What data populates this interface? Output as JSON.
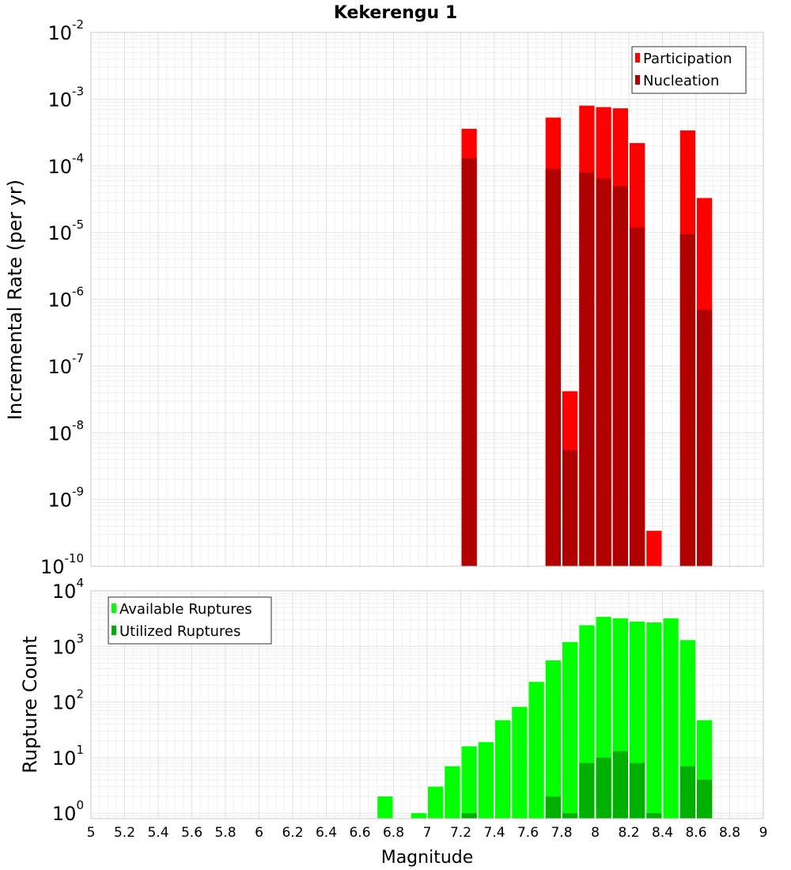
{
  "chart_data": [
    {
      "type": "bar",
      "title": "Kekerengu 1",
      "xlabel": "Magnitude",
      "ylabel": "Incremental Rate (per yr)",
      "yscale": "log",
      "ylim": [
        1e-10,
        0.01
      ],
      "xlim": [
        5,
        9
      ],
      "bin_width": 0.1,
      "legend_position": "top-right",
      "grid": true,
      "series": [
        {
          "name": "Participation",
          "color": "#ff0000",
          "points": [
            {
              "x": 7.25,
              "y": 0.00036
            },
            {
              "x": 7.75,
              "y": 0.00053
            },
            {
              "x": 7.85,
              "y": 4.2e-08
            },
            {
              "x": 7.95,
              "y": 0.0008
            },
            {
              "x": 8.05,
              "y": 0.00076
            },
            {
              "x": 8.15,
              "y": 0.00073
            },
            {
              "x": 8.25,
              "y": 0.00022
            },
            {
              "x": 8.35,
              "y": 3.4e-10
            },
            {
              "x": 8.55,
              "y": 0.00034
            },
            {
              "x": 8.65,
              "y": 3.3e-05
            }
          ]
        },
        {
          "name": "Nucleation",
          "color": "#b00000",
          "points": [
            {
              "x": 7.25,
              "y": 0.00013
            },
            {
              "x": 7.75,
              "y": 9e-05
            },
            {
              "x": 7.85,
              "y": 5.5e-09
            },
            {
              "x": 7.95,
              "y": 8e-05
            },
            {
              "x": 8.05,
              "y": 6.5e-05
            },
            {
              "x": 8.15,
              "y": 5e-05
            },
            {
              "x": 8.25,
              "y": 1.2e-05
            },
            {
              "x": 8.55,
              "y": 9.5e-06
            },
            {
              "x": 8.65,
              "y": 7e-07
            }
          ]
        }
      ],
      "y_ticks": [
        {
          "base": "10",
          "exp": "-2",
          "value": 0.01
        },
        {
          "base": "10",
          "exp": "-3",
          "value": 0.001
        },
        {
          "base": "10",
          "exp": "-4",
          "value": 0.0001
        },
        {
          "base": "10",
          "exp": "-5",
          "value": 1e-05
        },
        {
          "base": "10",
          "exp": "-6",
          "value": 1e-06
        },
        {
          "base": "10",
          "exp": "-7",
          "value": 1e-07
        },
        {
          "base": "10",
          "exp": "-8",
          "value": 1e-08
        },
        {
          "base": "10",
          "exp": "-9",
          "value": 1e-09
        },
        {
          "base": "10",
          "exp": "-10",
          "value": 1e-10
        }
      ]
    },
    {
      "type": "bar",
      "xlabel": "Magnitude",
      "ylabel": "Rupture Count",
      "yscale": "log",
      "ylim": [
        0.8,
        10000
      ],
      "xlim": [
        5,
        9
      ],
      "bin_width": 0.1,
      "legend_position": "top-left",
      "grid": true,
      "series": [
        {
          "name": "Available Ruptures",
          "color": "#00ff00",
          "points": [
            {
              "x": 6.75,
              "y": 2
            },
            {
              "x": 6.95,
              "y": 1
            },
            {
              "x": 7.05,
              "y": 3
            },
            {
              "x": 7.15,
              "y": 7
            },
            {
              "x": 7.25,
              "y": 16
            },
            {
              "x": 7.35,
              "y": 19
            },
            {
              "x": 7.45,
              "y": 47
            },
            {
              "x": 7.55,
              "y": 82
            },
            {
              "x": 7.65,
              "y": 230
            },
            {
              "x": 7.75,
              "y": 560
            },
            {
              "x": 7.85,
              "y": 1200
            },
            {
              "x": 7.95,
              "y": 2400
            },
            {
              "x": 8.05,
              "y": 3400
            },
            {
              "x": 8.15,
              "y": 3200
            },
            {
              "x": 8.25,
              "y": 2800
            },
            {
              "x": 8.35,
              "y": 2700
            },
            {
              "x": 8.45,
              "y": 3200
            },
            {
              "x": 8.55,
              "y": 1300
            },
            {
              "x": 8.65,
              "y": 47
            }
          ]
        },
        {
          "name": "Utilized Ruptures",
          "color": "#00b000",
          "points": [
            {
              "x": 7.25,
              "y": 1
            },
            {
              "x": 7.75,
              "y": 2
            },
            {
              "x": 7.85,
              "y": 1
            },
            {
              "x": 7.95,
              "y": 8
            },
            {
              "x": 8.05,
              "y": 10
            },
            {
              "x": 8.15,
              "y": 13
            },
            {
              "x": 8.25,
              "y": 8
            },
            {
              "x": 8.35,
              "y": 1
            },
            {
              "x": 8.55,
              "y": 7
            },
            {
              "x": 8.65,
              "y": 4
            }
          ]
        }
      ],
      "y_ticks": [
        {
          "base": "10",
          "exp": "4",
          "value": 10000
        },
        {
          "base": "10",
          "exp": "3",
          "value": 1000
        },
        {
          "base": "10",
          "exp": "2",
          "value": 100
        },
        {
          "base": "10",
          "exp": "1",
          "value": 10
        },
        {
          "base": "10",
          "exp": "0",
          "value": 1
        }
      ],
      "x_ticks": [
        "5",
        "5.2",
        "5.4",
        "5.6",
        "5.8",
        "6",
        "6.2",
        "6.4",
        "6.6",
        "6.8",
        "7",
        "7.2",
        "7.4",
        "7.6",
        "7.8",
        "8",
        "8.2",
        "8.4",
        "8.6",
        "8.8",
        "9"
      ]
    }
  ]
}
